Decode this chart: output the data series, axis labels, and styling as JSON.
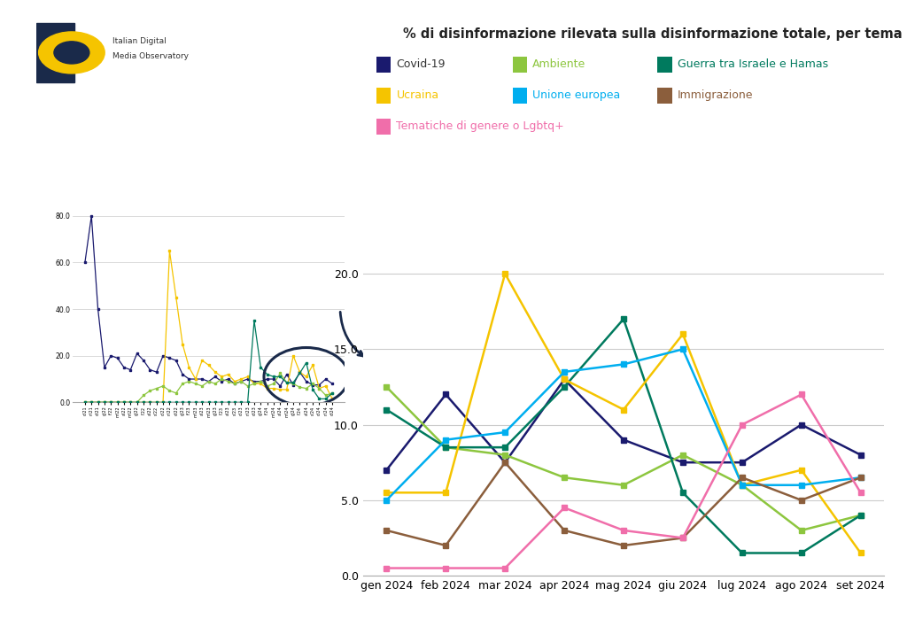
{
  "title": "% di disinformazione rilevata sulla disinformazione totale, per tema",
  "months": [
    "gen 2024",
    "feb 2024",
    "mar 2024",
    "apr 2024",
    "mag 2024",
    "giu 2024",
    "lug 2024",
    "ago 2024",
    "set 2024"
  ],
  "series": {
    "Covid-19": {
      "color": "#1a1a6e",
      "values": [
        7.0,
        12.0,
        7.5,
        13.0,
        9.0,
        7.5,
        7.5,
        10.0,
        8.0
      ]
    },
    "Ambiente": {
      "color": "#8dc63f",
      "values": [
        12.5,
        8.5,
        8.0,
        6.5,
        6.0,
        8.0,
        6.0,
        3.0,
        4.0
      ]
    },
    "Guerra tra Israele e Hamas": {
      "color": "#007a5e",
      "values": [
        11.0,
        8.5,
        8.5,
        12.5,
        17.0,
        5.5,
        1.5,
        1.5,
        4.0
      ]
    },
    "Ucraina": {
      "color": "#f5c400",
      "values": [
        5.5,
        5.5,
        20.0,
        13.0,
        11.0,
        16.0,
        6.0,
        7.0,
        1.5
      ]
    },
    "Unione europea": {
      "color": "#00aeef",
      "values": [
        5.0,
        9.0,
        9.5,
        13.5,
        14.0,
        15.0,
        6.0,
        6.0,
        6.5
      ]
    },
    "Immigrazione": {
      "color": "#8b5e3c",
      "values": [
        3.0,
        2.0,
        7.5,
        3.0,
        2.0,
        2.5,
        6.5,
        5.0,
        6.5
      ]
    },
    "Tematiche di genere o Lgbtq+": {
      "color": "#f06eaa",
      "values": [
        0.5,
        0.5,
        0.5,
        4.5,
        3.0,
        2.5,
        10.0,
        12.0,
        5.5
      ]
    }
  },
  "series_order": [
    "Covid-19",
    "Ambiente",
    "Guerra tra Israele e Hamas",
    "Ucraina",
    "Unione europea",
    "Immigrazione",
    "Tematiche di genere o Lgbtq+"
  ],
  "ylim": [
    0.0,
    20.5
  ],
  "yticks": [
    0.0,
    5.0,
    10.0,
    15.0,
    20.0
  ],
  "mini_ylim": [
    0,
    85
  ],
  "mini_yticks": [
    0.0,
    20.0,
    40.0,
    60.0,
    80.0
  ],
  "mini_chart": {
    "covid": [
      60.0,
      80.0,
      40.0,
      15.0,
      20.0,
      19.0,
      15.0,
      14.0,
      21.0,
      18.0,
      14.0,
      13.0,
      20.0,
      19.0,
      18.0,
      12.0,
      10.0,
      10.0,
      10.0,
      9.0,
      11.0,
      9.0,
      10.0,
      8.0,
      9.0,
      10.0,
      9.0,
      9.0,
      10.0,
      10.0,
      7.0,
      12.0,
      7.5,
      13.0,
      9.0,
      7.5,
      7.5,
      10.0,
      8.0
    ],
    "ucraina": [
      0.0,
      0.0,
      0.0,
      0.0,
      0.0,
      0.0,
      0.0,
      0.0,
      0.0,
      0.0,
      0.0,
      0.0,
      0.0,
      65.0,
      45.0,
      25.0,
      15.0,
      10.0,
      18.0,
      16.0,
      13.0,
      11.0,
      12.0,
      9.0,
      10.0,
      11.0,
      8.0,
      8.0,
      6.0,
      6.0,
      5.5,
      5.5,
      20.0,
      13.0,
      11.0,
      16.0,
      6.0,
      7.0,
      1.5
    ],
    "ambiente": [
      0.0,
      0.0,
      0.0,
      0.0,
      0.0,
      0.0,
      0.0,
      0.0,
      0.0,
      3.0,
      5.0,
      6.0,
      7.0,
      5.0,
      4.0,
      8.0,
      9.0,
      8.0,
      7.0,
      9.0,
      8.0,
      10.0,
      9.0,
      8.0,
      9.0,
      7.0,
      8.0,
      9.0,
      7.0,
      8.0,
      12.5,
      8.5,
      8.0,
      6.5,
      6.0,
      8.0,
      6.0,
      3.0,
      4.0
    ],
    "israele": [
      0.0,
      0.0,
      0.0,
      0.0,
      0.0,
      0.0,
      0.0,
      0.0,
      0.0,
      0.0,
      0.0,
      0.0,
      0.0,
      0.0,
      0.0,
      0.0,
      0.0,
      0.0,
      0.0,
      0.0,
      0.0,
      0.0,
      0.0,
      0.0,
      0.0,
      0.0,
      35.0,
      15.0,
      12.0,
      11.0,
      11.0,
      8.5,
      8.5,
      12.5,
      17.0,
      5.5,
      1.5,
      1.5,
      4.0
    ]
  },
  "legend_rows": [
    [
      [
        "Covid-19",
        "#1a1a6e",
        "#333333"
      ],
      [
        "Ambiente",
        "#8dc63f",
        "#8dc63f"
      ],
      [
        "Guerra tra Israele e Hamas",
        "#007a5e",
        "#007a5e"
      ]
    ],
    [
      [
        "Ucraina",
        "#f5c400",
        "#f5c400"
      ],
      [
        "Unione europea",
        "#00aeef",
        "#00aeef"
      ],
      [
        "Immigrazione",
        "#8b5e3c",
        "#8b5e3c"
      ]
    ],
    [
      [
        "Tematiche di genere o Lgbtq+",
        "#f06eaa",
        "#f06eaa"
      ]
    ]
  ],
  "background_color": "#ffffff",
  "arrow_color": "#1a2a4a",
  "ellipse_color": "#1a2a4a",
  "logo_dark": "#1a2a4a",
  "logo_yellow": "#f5c400"
}
